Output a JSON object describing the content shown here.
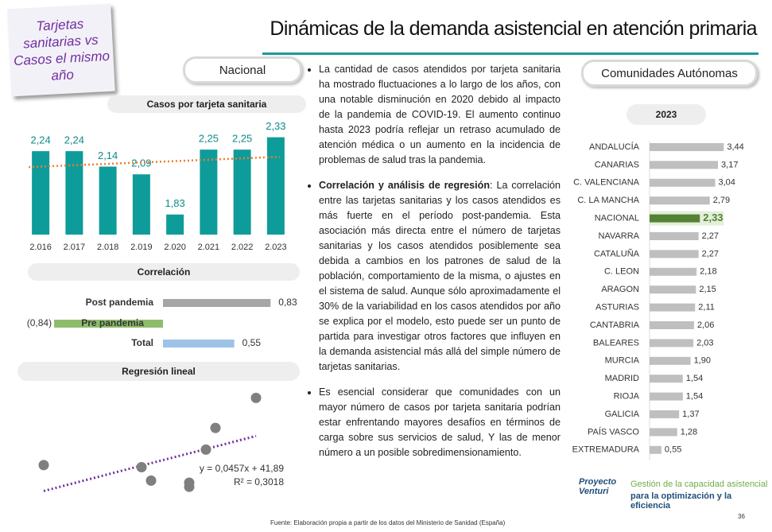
{
  "title": "Dinámicas de la demanda asistencial en atención primaria",
  "sticky_note": "Tarjetas sanitarias vs Casos el mismo año",
  "nacional_label": "Nacional",
  "comunidades_label": "Comunidades Autónomas",
  "bullets": [
    {
      "text": "La cantidad de casos atendidos por tarjeta sanitaria ha mostrado fluctuaciones a lo largo de los años, con una notable disminución en 2020 debido al impacto de la pandemia de COVID-19. El aumento continuo hasta 2023 podría reflejar un retraso acumulado de atención médica o un aumento en la incidencia de problemas de salud tras la pandemia."
    },
    {
      "bold": "Correlación y análisis de regresión",
      "text": ": La correlación entre las tarjetas sanitarias y los casos atendidos es más fuerte en el período post-pandemia. Esta asociación más directa entre el número de tarjetas sanitarias y los casos atendidos posiblemente sea debida a cambios en los patrones de salud de la población, comportamiento de la misma, o ajustes en el sistema de salud. Aunque sólo aproximadamente el 30% de la variabilidad en los casos atendidos por año se explica por el modelo, esto puede ser un punto de partida para investigar otros factores que influyen en la demanda asistencial más allá del simple número de tarjetas sanitarias."
    },
    {
      "text": "Es esencial considerar que comunidades con un mayor número de casos por tarjeta sanitaria podrían estar enfrentando mayores desafíos en términos de carga sobre sus servicios de salud, Y las de menor número a un posible sobredimensionamiento."
    }
  ],
  "source": "Fuente: Elaboración propia a partir de los datos del Ministerio de Sanidad (España)",
  "page_number": "36",
  "logo": {
    "name": "Proyecto Venturi",
    "tagline_1": "Gestión de la capacidad asistencial",
    "tagline_2": "para la optimización y la eficiencia"
  },
  "chart_data": [
    {
      "type": "bar",
      "title": "Casos por tarjeta sanitaria",
      "categories": [
        "2.016",
        "2.017",
        "2.018",
        "2.019",
        "2.020",
        "2.021",
        "2.022",
        "2.023"
      ],
      "values": [
        2.24,
        2.24,
        2.14,
        2.09,
        1.83,
        2.25,
        2.25,
        2.33
      ],
      "value_labels": [
        "2,24",
        "2,24",
        "2,14",
        "2,09",
        "1,83",
        "2,25",
        "2,25",
        "2,33"
      ],
      "color": "#0e9c9a",
      "ylim": [
        1.7,
        2.4
      ],
      "trendline": true,
      "trendline_color": "#ed7d31"
    },
    {
      "type": "hbar",
      "title": "Correlación",
      "categories": [
        "Post pandemia",
        "Pre pandemia",
        "Total"
      ],
      "values": [
        0.83,
        -0.84,
        0.55
      ],
      "value_labels": [
        "0,83",
        "(0,84)",
        "0,55"
      ],
      "colors": [
        "#a6a6a6",
        "#70ad47",
        "#9dc3e6"
      ],
      "xlim": [
        -1,
        1
      ]
    },
    {
      "type": "scatter",
      "title": "Regresión lineal",
      "x": [
        5,
        46,
        50,
        66,
        66,
        73,
        77,
        94
      ],
      "values": [
        27,
        25,
        12,
        10,
        6,
        42,
        63,
        92
      ],
      "color": "#7f7f7f",
      "xlim": [
        0,
        100
      ],
      "ylim": [
        0,
        100
      ],
      "trendline": true,
      "trendline_color": "#7030a0",
      "annotations": [
        "y = 0,0457x + 41,89",
        "R² = 0,3018"
      ]
    },
    {
      "type": "hbar",
      "title": "2023",
      "categories": [
        "ANDALUCÍA",
        "CANARIAS",
        "C. VALENCIANA",
        "C. LA MANCHA",
        "NACIONAL",
        "NAVARRA",
        "CATALUÑA",
        "C. LEON",
        "ARAGON",
        "ASTURIAS",
        "CANTABRIA",
        "BALEARES",
        "MURCIA",
        "MADRID",
        "RIOJA",
        "GALICIA",
        "PAÍS VASCO",
        "EXTREMADURA"
      ],
      "values": [
        3.44,
        3.17,
        3.04,
        2.79,
        2.33,
        2.27,
        2.27,
        2.18,
        2.15,
        2.11,
        2.06,
        2.03,
        1.9,
        1.54,
        1.54,
        1.37,
        1.28,
        0.55
      ],
      "value_labels": [
        "3,44",
        "3,17",
        "3,04",
        "2,79",
        "2,33",
        "2,27",
        "2,27",
        "2,18",
        "2,15",
        "2,11",
        "2,06",
        "2,03",
        "1,90",
        "1,54",
        "1,54",
        "1,37",
        "1,28",
        "0,55"
      ],
      "color": "#bfbfbf",
      "highlight": "NACIONAL",
      "highlight_color": "#548235",
      "xlim": [
        0,
        3.5
      ]
    }
  ]
}
